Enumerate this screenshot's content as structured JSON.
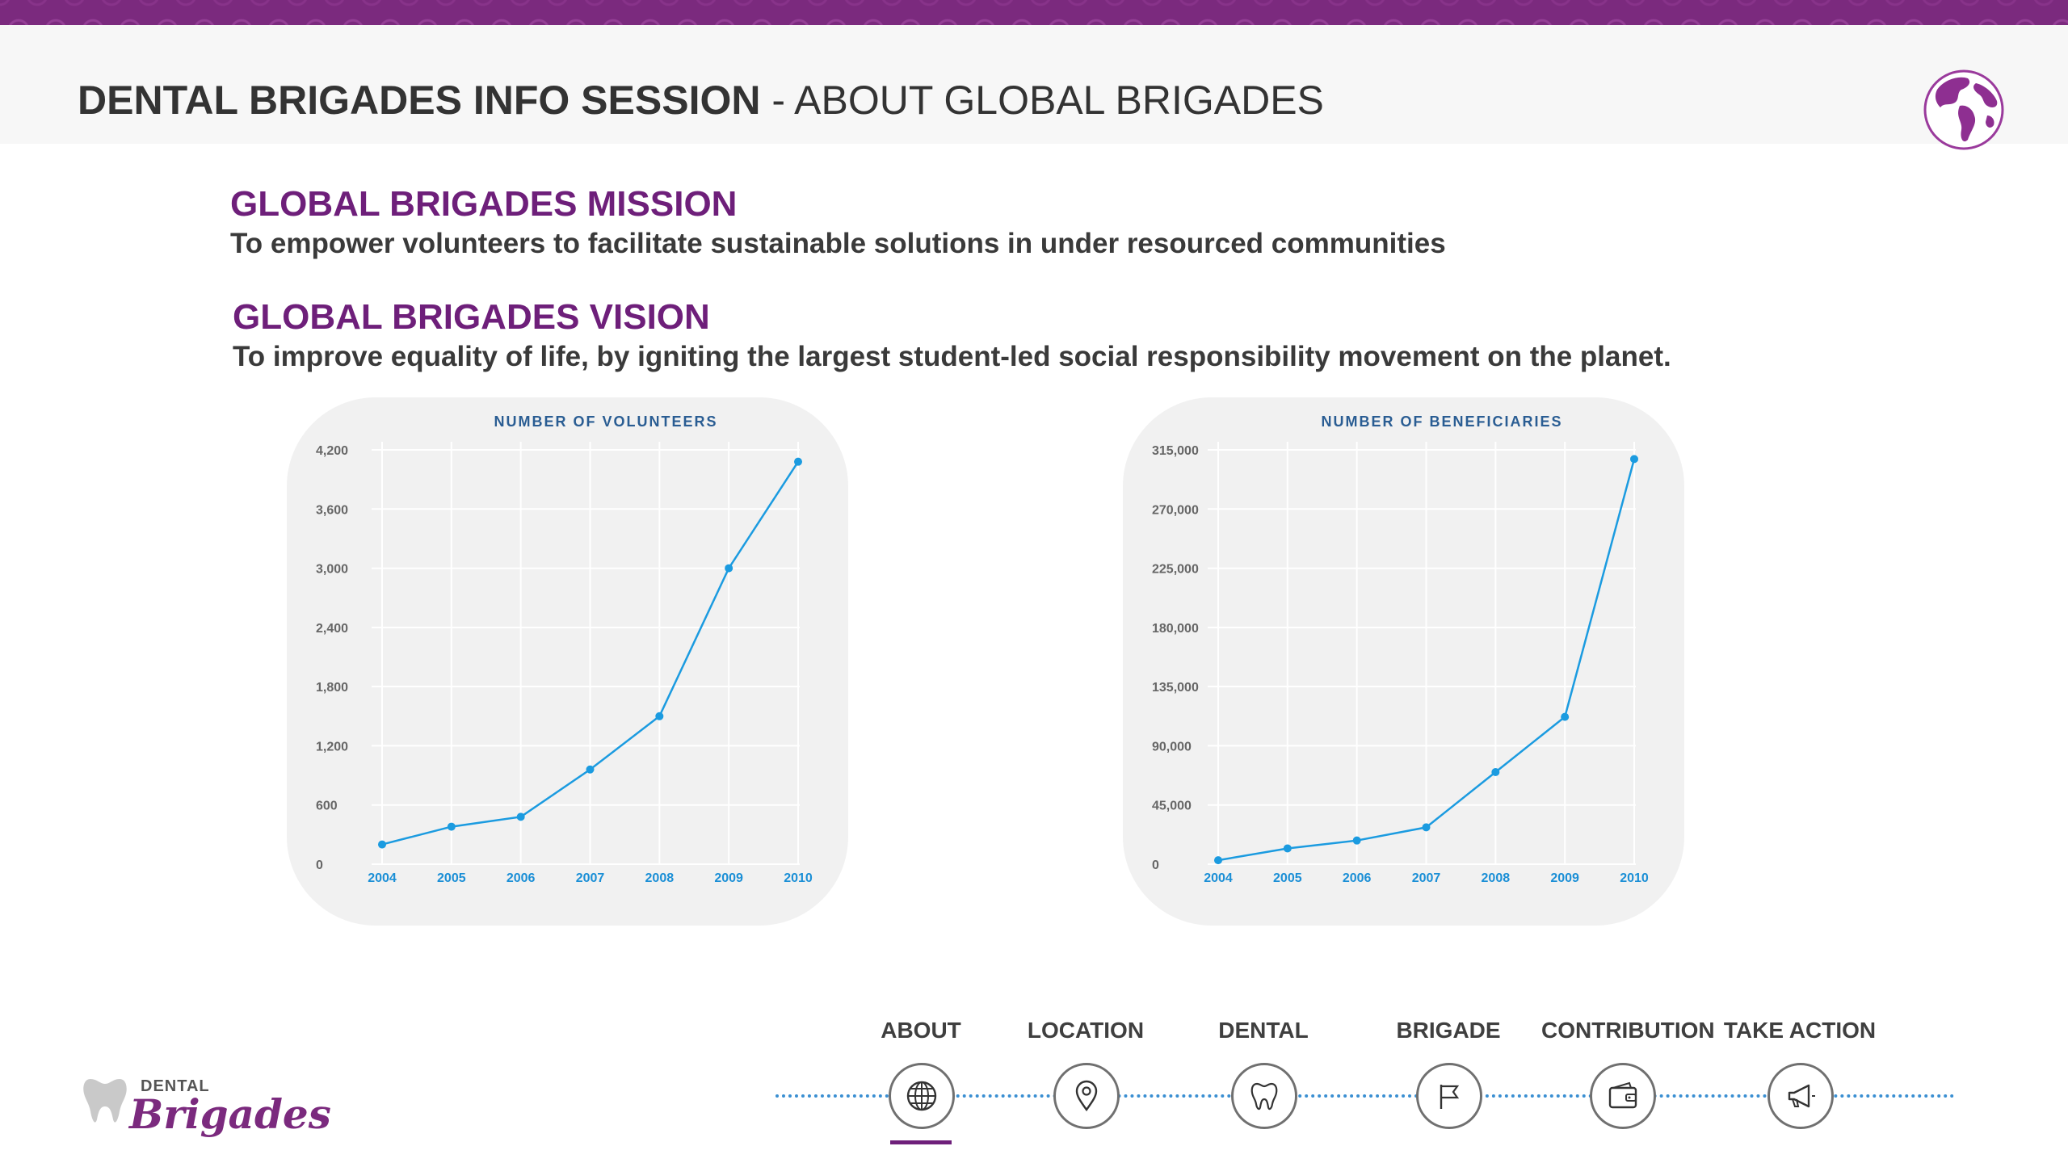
{
  "header": {
    "title_bold": "DENTAL BRIGADES INFO SESSION",
    "title_rest": " - ABOUT GLOBAL BRIGADES",
    "logo_icon": "globe-icon"
  },
  "mission": {
    "heading": "GLOBAL BRIGADES MISSION",
    "text": "To empower volunteers to facilitate sustainable solutions in under resourced communities"
  },
  "vision": {
    "heading": "GLOBAL BRIGADES VISION",
    "text": "To improve equality of life, by igniting the largest student-led social responsibility movement on the planet."
  },
  "chart_data": [
    {
      "type": "line",
      "title": "NUMBER OF VOLUNTEERS",
      "x": [
        "2004",
        "2005",
        "2006",
        "2007",
        "2008",
        "2009",
        "2010"
      ],
      "values": [
        200,
        380,
        480,
        960,
        1500,
        3000,
        4080
      ],
      "yticks": [
        0,
        600,
        1200,
        1800,
        2400,
        3000,
        3600,
        4200
      ],
      "ytick_labels": [
        "0",
        "600",
        "1,200",
        "1,800",
        "2,400",
        "3,000",
        "3,600",
        "4,200"
      ],
      "ylim": [
        0,
        4200
      ],
      "grid": true,
      "line_color": "#1b9be0"
    },
    {
      "type": "line",
      "title": "NUMBER OF BENEFICIARIES",
      "x": [
        "2004",
        "2005",
        "2006",
        "2007",
        "2008",
        "2009",
        "2010"
      ],
      "values": [
        3000,
        12000,
        18000,
        28000,
        70000,
        112000,
        308000
      ],
      "yticks": [
        0,
        45000,
        90000,
        135000,
        180000,
        225000,
        270000,
        315000
      ],
      "ytick_labels": [
        "0",
        "45,000",
        "90,000",
        "135,000",
        "180,000",
        "225,000",
        "270,000",
        "315,000"
      ],
      "ylim": [
        0,
        315000
      ],
      "grid": true,
      "line_color": "#1b9be0"
    }
  ],
  "nav": {
    "active": "ABOUT",
    "items": [
      {
        "label": "ABOUT",
        "icon": "globe-icon"
      },
      {
        "label": "LOCATION",
        "icon": "location-pin-icon"
      },
      {
        "label": "DENTAL",
        "icon": "tooth-icon"
      },
      {
        "label": "BRIGADE",
        "icon": "flag-icon"
      },
      {
        "label": "CONTRIBUTION",
        "icon": "wallet-icon"
      },
      {
        "label": "TAKE ACTION",
        "icon": "megaphone-icon"
      }
    ]
  },
  "logo": {
    "dental": "DENTAL",
    "brigades": "Brigades"
  },
  "colors": {
    "brand_purple": "#6e1f7a",
    "band_purple": "#7b2a7e",
    "chart_blue": "#1b9be0",
    "nav_dots": "#3a8fd2"
  }
}
